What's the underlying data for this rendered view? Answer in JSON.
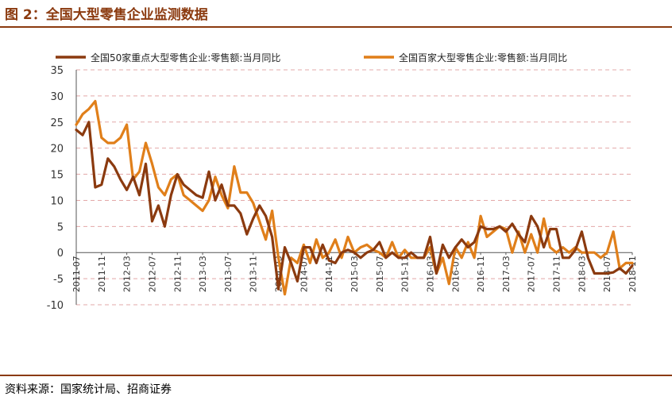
{
  "header": {
    "title": "图 2：全国大型零售企业监测数据"
  },
  "footer": {
    "source": "资料来源：国家统计局、招商证券"
  },
  "colors": {
    "accent": "#8B3A0F",
    "series1": "#8B3A0F",
    "series2": "#E07F1A",
    "grid": "#E3A8A8"
  },
  "chart_data": {
    "type": "line",
    "title": "",
    "ylim": [
      -10,
      35
    ],
    "yticks": [
      -10,
      -5,
      0,
      5,
      10,
      15,
      20,
      25,
      30,
      35
    ],
    "grid": true,
    "legend_position": "top",
    "x_tick_labels": [
      "2011-07",
      "2011-11",
      "2012-03",
      "2012-07",
      "2012-11",
      "2013-03",
      "2013-07",
      "2013-11",
      "2014-03",
      "2014-07",
      "2014-11",
      "2015-03",
      "2015-07",
      "2015-11",
      "2016-03",
      "2016-07",
      "2016-11",
      "2017-03",
      "2017-07",
      "2017-11",
      "2018-03",
      "2018-07",
      "2018-11"
    ],
    "x": [
      "2011-07",
      "2011-08",
      "2011-09",
      "2011-10",
      "2011-11",
      "2011-12",
      "2012-01",
      "2012-02",
      "2012-03",
      "2012-04",
      "2012-05",
      "2012-06",
      "2012-07",
      "2012-08",
      "2012-09",
      "2012-10",
      "2012-11",
      "2012-12",
      "2013-01",
      "2013-02",
      "2013-03",
      "2013-04",
      "2013-05",
      "2013-06",
      "2013-07",
      "2013-08",
      "2013-09",
      "2013-10",
      "2013-11",
      "2013-12",
      "2014-01",
      "2014-02",
      "2014-03",
      "2014-04",
      "2014-05",
      "2014-06",
      "2014-07",
      "2014-08",
      "2014-09",
      "2014-10",
      "2014-11",
      "2014-12",
      "2015-01",
      "2015-02",
      "2015-03",
      "2015-04",
      "2015-05",
      "2015-06",
      "2015-07",
      "2015-08",
      "2015-09",
      "2015-10",
      "2015-11",
      "2015-12",
      "2016-01",
      "2016-02",
      "2016-03",
      "2016-04",
      "2016-05",
      "2016-06",
      "2016-07",
      "2016-08",
      "2016-09",
      "2016-10",
      "2016-11",
      "2016-12",
      "2017-01",
      "2017-02",
      "2017-03",
      "2017-04",
      "2017-05",
      "2017-06",
      "2017-07",
      "2017-08",
      "2017-09",
      "2017-10",
      "2017-11",
      "2017-12",
      "2018-01",
      "2018-02",
      "2018-03",
      "2018-04",
      "2018-05",
      "2018-06",
      "2018-07",
      "2018-08",
      "2018-09",
      "2018-10",
      "2018-11"
    ],
    "series": [
      {
        "name": "全国50家重点大型零售企业:零售额:当月同比",
        "values": [
          23.5,
          22.5,
          25,
          12.5,
          13,
          18,
          16.5,
          14,
          12,
          14.5,
          11,
          17,
          6,
          9,
          5,
          11,
          15,
          13,
          12,
          11,
          10.5,
          15.5,
          10,
          13,
          9,
          9,
          7.5,
          3.5,
          6.5,
          9,
          7,
          3,
          -7,
          1,
          -2,
          -5.5,
          1,
          1,
          -2,
          1.5,
          -1.5,
          -2,
          0,
          0.5,
          0,
          -1,
          0,
          0.5,
          2,
          -1,
          0,
          -1,
          -1,
          0,
          -1,
          -1,
          3,
          -4,
          1.5,
          -1,
          1,
          2.5,
          1,
          2,
          5,
          4.5,
          4.5,
          5,
          4,
          5.5,
          3.5,
          2,
          7,
          5,
          1,
          4.5,
          4.5,
          -1,
          -1,
          0.5,
          4,
          -1,
          -4,
          -4,
          -4,
          -3.8,
          -3,
          -4,
          -2.5
        ]
      },
      {
        "name": "全国百家大型零售企业:零售额:当月同比",
        "values": [
          24.5,
          26.5,
          27.5,
          29,
          22,
          21,
          21,
          22,
          24.5,
          14,
          15.5,
          21,
          17,
          12.5,
          11,
          14,
          15,
          11,
          10,
          9,
          8,
          10,
          14.5,
          11,
          8.5,
          16.5,
          11.5,
          11.5,
          9.5,
          6,
          2.5,
          8,
          -1,
          -8,
          -1,
          -2,
          1.5,
          -2,
          2.5,
          -1,
          0,
          2.5,
          -1,
          3,
          0,
          1,
          1.5,
          0.5,
          0,
          -1,
          2,
          -1,
          0.5,
          -1,
          -1,
          -1,
          1,
          -4,
          -1,
          -6,
          1,
          -1,
          2,
          -1,
          7,
          3,
          4,
          5,
          4.5,
          0,
          4,
          0,
          3.5,
          0,
          6.5,
          1,
          0,
          1,
          0,
          1,
          0,
          0,
          0,
          -1,
          0,
          4,
          -3,
          -2,
          -2
        ]
      }
    ]
  }
}
